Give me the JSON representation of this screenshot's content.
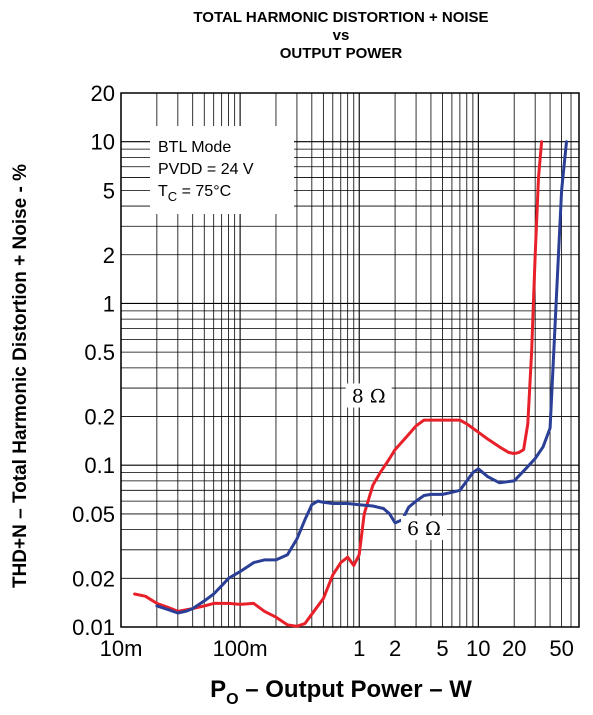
{
  "chart_data": {
    "type": "line",
    "title_lines": [
      "TOTAL HARMONIC DISTORTION + NOISE",
      "vs",
      "OUTPUT POWER"
    ],
    "xlabel": {
      "main": "P",
      "sub": "O",
      "rest": " – Output Power – W"
    },
    "ylabel": "THD+N – Total Harmonic Distortion + Noise - %",
    "x_scale": "log",
    "y_scale": "log",
    "xlim": [
      0.01,
      70
    ],
    "ylim": [
      0.01,
      20
    ],
    "grid": true,
    "x_ticks": [
      {
        "value": 0.01,
        "label": "10m"
      },
      {
        "value": 0.1,
        "label": "100m"
      },
      {
        "value": 1,
        "label": "1"
      },
      {
        "value": 2,
        "label": "2"
      },
      {
        "value": 5,
        "label": "5"
      },
      {
        "value": 10,
        "label": "10"
      },
      {
        "value": 20,
        "label": "20"
      },
      {
        "value": 50,
        "label": "50"
      }
    ],
    "y_ticks": [
      {
        "value": 0.01,
        "label": "0.01"
      },
      {
        "value": 0.02,
        "label": "0.02"
      },
      {
        "value": 0.05,
        "label": "0.05"
      },
      {
        "value": 0.1,
        "label": "0.1"
      },
      {
        "value": 0.2,
        "label": "0.2"
      },
      {
        "value": 0.5,
        "label": "0.5"
      },
      {
        "value": 1,
        "label": "1"
      },
      {
        "value": 2,
        "label": "2"
      },
      {
        "value": 5,
        "label": "5"
      },
      {
        "value": 10,
        "label": "10"
      },
      {
        "value": 20,
        "label": "20"
      }
    ],
    "annotation": {
      "line1": "BTL Mode",
      "line2": "PVDD = 24 V",
      "line3_main": "T",
      "line3_sub": "C",
      "line3_rest": " = 75°C"
    },
    "series": [
      {
        "name": "8 Ω",
        "color": "#e8202a",
        "x": [
          0.013,
          0.016,
          0.02,
          0.025,
          0.03,
          0.04,
          0.05,
          0.06,
          0.08,
          0.1,
          0.13,
          0.16,
          0.2,
          0.25,
          0.3,
          0.35,
          0.4,
          0.5,
          0.6,
          0.7,
          0.8,
          0.9,
          1.0,
          1.1,
          1.3,
          1.5,
          1.8,
          2.0,
          2.5,
          3.0,
          3.5,
          4.0,
          5.0,
          6.0,
          7.0,
          8.0,
          10,
          12,
          15,
          18,
          20,
          22,
          24,
          26,
          28,
          30,
          32,
          34
        ],
        "y": [
          0.016,
          0.0155,
          0.014,
          0.0132,
          0.0125,
          0.013,
          0.0135,
          0.014,
          0.014,
          0.0138,
          0.014,
          0.0125,
          0.0115,
          0.0103,
          0.0101,
          0.0105,
          0.012,
          0.015,
          0.021,
          0.025,
          0.027,
          0.024,
          0.028,
          0.05,
          0.075,
          0.09,
          0.11,
          0.125,
          0.15,
          0.175,
          0.19,
          0.19,
          0.19,
          0.19,
          0.19,
          0.18,
          0.16,
          0.145,
          0.13,
          0.12,
          0.118,
          0.12,
          0.125,
          0.18,
          0.5,
          2.0,
          6.0,
          10.0
        ]
      },
      {
        "name": "6 Ω",
        "color": "#2a3f95",
        "x": [
          0.02,
          0.025,
          0.03,
          0.035,
          0.04,
          0.05,
          0.06,
          0.07,
          0.08,
          0.1,
          0.13,
          0.16,
          0.2,
          0.25,
          0.3,
          0.35,
          0.4,
          0.45,
          0.5,
          0.6,
          0.7,
          0.8,
          1.0,
          1.3,
          1.6,
          1.8,
          2.0,
          2.3,
          2.6,
          3.0,
          3.5,
          4.0,
          5.0,
          6.0,
          7.0,
          8.0,
          9.0,
          10,
          12,
          15,
          20,
          25,
          30,
          35,
          40,
          45,
          50,
          55
        ],
        "y": [
          0.0135,
          0.0128,
          0.0122,
          0.0125,
          0.013,
          0.0145,
          0.016,
          0.018,
          0.02,
          0.022,
          0.025,
          0.026,
          0.026,
          0.028,
          0.035,
          0.046,
          0.057,
          0.06,
          0.059,
          0.058,
          0.058,
          0.058,
          0.057,
          0.056,
          0.054,
          0.05,
          0.044,
          0.046,
          0.055,
          0.06,
          0.065,
          0.066,
          0.066,
          0.068,
          0.07,
          0.08,
          0.09,
          0.095,
          0.085,
          0.078,
          0.08,
          0.095,
          0.11,
          0.13,
          0.17,
          1.0,
          5.0,
          10.0
        ]
      }
    ],
    "series_labels": [
      {
        "text": "8 Ω",
        "x": 1.2,
        "y": 0.27
      },
      {
        "text": "6 Ω",
        "x": 3.5,
        "y": 0.041
      }
    ]
  }
}
